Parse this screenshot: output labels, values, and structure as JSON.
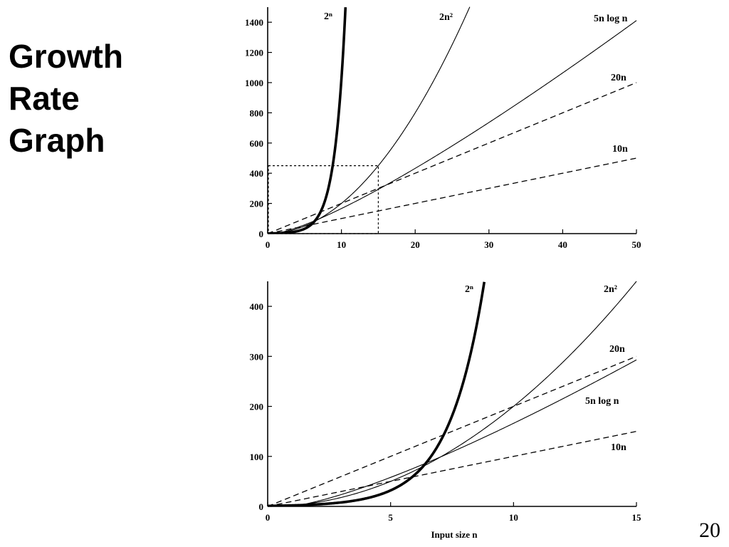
{
  "slide": {
    "title_lines": [
      "Growth",
      "Rate",
      "Graph"
    ],
    "page_number": "20"
  },
  "chart_data": [
    {
      "type": "line",
      "title": "",
      "xlabel": "",
      "ylabel": "",
      "xlim": [
        0,
        50
      ],
      "ylim": [
        0,
        1500
      ],
      "xticks": [
        0,
        10,
        20,
        30,
        40,
        50
      ],
      "yticks": [
        0,
        200,
        400,
        600,
        800,
        1000,
        1200,
        1400
      ],
      "grid": false,
      "series": [
        {
          "label": "2ⁿ",
          "function": "2^n",
          "style": "thick",
          "x": [
            0,
            1,
            2,
            3,
            4,
            5,
            6,
            7,
            8,
            9,
            10,
            10.55
          ],
          "y": [
            1,
            2,
            4,
            8,
            16,
            32,
            64,
            128,
            256,
            512,
            1024,
            1500
          ]
        },
        {
          "label": "2n²",
          "function": "2n^2",
          "style": "solid",
          "x": [
            0,
            5,
            10,
            15,
            20,
            25,
            27.4
          ],
          "y": [
            0,
            50,
            200,
            450,
            800,
            1250,
            1500
          ]
        },
        {
          "label": "5n log n",
          "function": "5n log2 n",
          "style": "solid",
          "x": [
            1,
            5,
            10,
            15,
            20,
            30,
            40,
            50
          ],
          "y": [
            0,
            58,
            166,
            293,
            432,
            736,
            1064,
            1411
          ]
        },
        {
          "label": "20n",
          "function": "20n",
          "style": "dashed",
          "x": [
            0,
            10,
            20,
            30,
            40,
            50
          ],
          "y": [
            0,
            200,
            400,
            600,
            800,
            1000
          ]
        },
        {
          "label": "10n",
          "function": "10n",
          "style": "dashed",
          "x": [
            0,
            10,
            20,
            30,
            40,
            50
          ],
          "y": [
            0,
            100,
            200,
            300,
            400,
            500
          ]
        }
      ],
      "annotations": [
        {
          "type": "zoom-box",
          "x": [
            0,
            15
          ],
          "y": [
            0,
            450
          ],
          "style": "dotted"
        }
      ]
    },
    {
      "type": "line",
      "title": "",
      "xlabel": "Input size n",
      "ylabel": "",
      "xlim": [
        0,
        15
      ],
      "ylim": [
        0,
        450
      ],
      "xticks": [
        0,
        5,
        10,
        15
      ],
      "yticks": [
        0,
        100,
        200,
        300,
        400
      ],
      "grid": false,
      "series": [
        {
          "label": "2ⁿ",
          "function": "2^n",
          "style": "thick",
          "x": [
            0,
            2,
            4,
            6,
            7,
            8,
            8.81
          ],
          "y": [
            1,
            4,
            16,
            64,
            128,
            256,
            450
          ]
        },
        {
          "label": "2n²",
          "function": "2n^2",
          "style": "solid",
          "x": [
            0,
            5,
            10,
            15
          ],
          "y": [
            0,
            50,
            200,
            450
          ]
        },
        {
          "label": "20n",
          "function": "20n",
          "style": "dashed",
          "x": [
            0,
            5,
            10,
            15
          ],
          "y": [
            0,
            100,
            200,
            300
          ]
        },
        {
          "label": "5n log n",
          "function": "5n log2 n",
          "style": "solid",
          "x": [
            1,
            5,
            10,
            15
          ],
          "y": [
            0,
            58,
            166,
            293
          ]
        },
        {
          "label": "10n",
          "function": "10n",
          "style": "dashed",
          "x": [
            0,
            5,
            10,
            15
          ],
          "y": [
            0,
            50,
            100,
            150
          ]
        }
      ],
      "annotations": []
    }
  ]
}
